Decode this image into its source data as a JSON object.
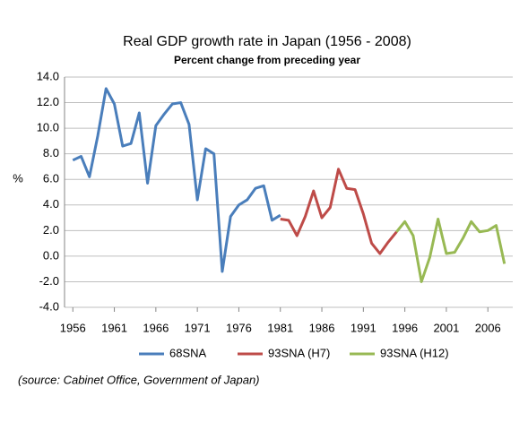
{
  "chart_data": {
    "type": "line",
    "title": "Real GDP growth rate in Japan (1956 - 2008)",
    "subtitle": "Percent change from preceding year",
    "y_label": "%",
    "annotation": "(source:  Cabinet Office, Government of Japan)",
    "x": [
      1956,
      1957,
      1958,
      1959,
      1960,
      1961,
      1962,
      1963,
      1964,
      1965,
      1966,
      1967,
      1968,
      1969,
      1970,
      1971,
      1972,
      1973,
      1974,
      1975,
      1976,
      1977,
      1978,
      1979,
      1980,
      1981,
      1982,
      1983,
      1984,
      1985,
      1986,
      1987,
      1988,
      1989,
      1990,
      1991,
      1992,
      1993,
      1994,
      1995,
      1996,
      1997,
      1998,
      1999,
      2000,
      2001,
      2002,
      2003,
      2004,
      2005,
      2006,
      2007,
      2008
    ],
    "series": [
      {
        "name": "68SNA",
        "color": "#4a7ebb",
        "values": [
          7.5,
          7.8,
          6.2,
          9.4,
          13.1,
          11.9,
          8.6,
          8.8,
          11.2,
          5.7,
          10.2,
          11.1,
          11.9,
          12.0,
          10.3,
          4.4,
          8.4,
          8.0,
          -1.2,
          3.1,
          4.0,
          4.4,
          5.3,
          5.5,
          2.8,
          3.2,
          null,
          null,
          null,
          null,
          null,
          null,
          null,
          null,
          null,
          null,
          null,
          null,
          null,
          null,
          null,
          null,
          null,
          null,
          null,
          null,
          null,
          null,
          null,
          null,
          null,
          null,
          null
        ]
      },
      {
        "name": "93SNA (H7)",
        "color": "#be4b48",
        "values": [
          null,
          null,
          null,
          null,
          null,
          null,
          null,
          null,
          null,
          null,
          null,
          null,
          null,
          null,
          null,
          null,
          null,
          null,
          null,
          null,
          null,
          null,
          null,
          null,
          null,
          2.9,
          2.8,
          1.6,
          3.1,
          5.1,
          3.0,
          3.8,
          6.8,
          5.3,
          5.2,
          3.3,
          1.0,
          0.2,
          1.1,
          1.9,
          null,
          null,
          null,
          null,
          null,
          null,
          null,
          null,
          null,
          null,
          null,
          null,
          null
        ]
      },
      {
        "name": "93SNA (H12)",
        "color": "#98b954",
        "values": [
          null,
          null,
          null,
          null,
          null,
          null,
          null,
          null,
          null,
          null,
          null,
          null,
          null,
          null,
          null,
          null,
          null,
          null,
          null,
          null,
          null,
          null,
          null,
          null,
          null,
          null,
          null,
          null,
          null,
          null,
          null,
          null,
          null,
          null,
          null,
          null,
          null,
          null,
          null,
          1.9,
          2.7,
          1.6,
          -2.0,
          -0.1,
          2.9,
          0.2,
          0.3,
          1.4,
          2.7,
          1.9,
          2.0,
          2.4,
          -0.6
        ]
      }
    ],
    "xlim": [
      1955,
      2009
    ],
    "xticks": [
      1956,
      1961,
      1966,
      1971,
      1976,
      1981,
      1986,
      1991,
      1996,
      2001,
      2006
    ],
    "ylim": [
      -4,
      14
    ],
    "yticks": [
      {
        "value": -4,
        "label": "-4.0"
      },
      {
        "value": -2,
        "label": "-2.0"
      },
      {
        "value": 0,
        "label": "0.0"
      },
      {
        "value": 2,
        "label": "2.0"
      },
      {
        "value": 4,
        "label": "4.0"
      },
      {
        "value": 6,
        "label": "6.0"
      },
      {
        "value": 8,
        "label": "8.0"
      },
      {
        "value": 10,
        "label": "10.0"
      },
      {
        "value": 12,
        "label": "12.0"
      },
      {
        "value": 14,
        "label": "14.0"
      }
    ],
    "grid": true,
    "legend": "bottom"
  }
}
